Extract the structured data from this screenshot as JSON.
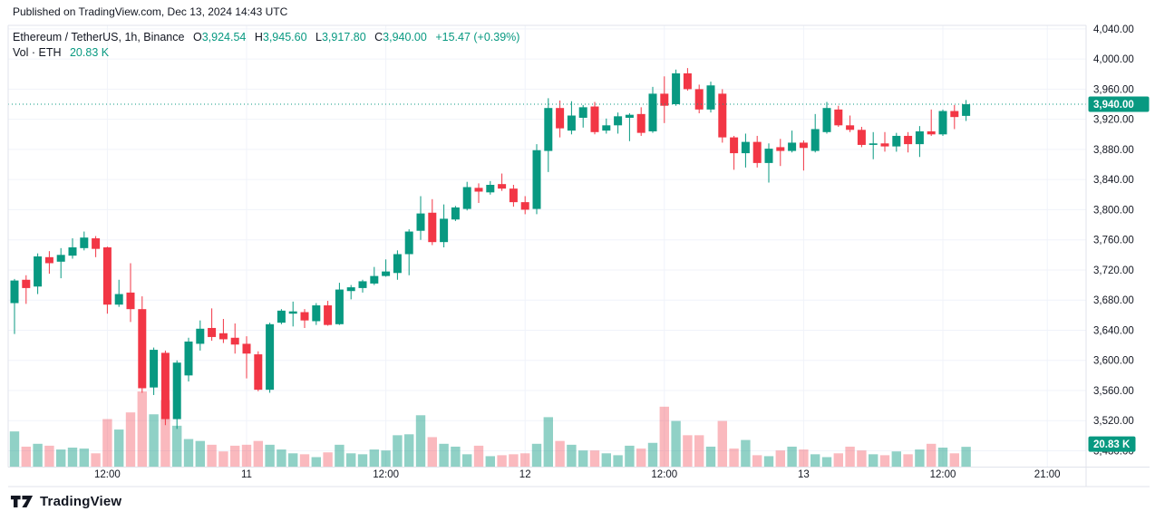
{
  "published_bar": {
    "text": "Published on TradingView.com, Dec 13, 2024 14:43 UTC"
  },
  "legend": {
    "title": "Ethereum / TetherUS, 1h, Binance",
    "o_label": "O",
    "o_value": "3,924.54",
    "h_label": "H",
    "h_value": "3,945.60",
    "l_label": "L",
    "l_value": "3,917.80",
    "c_label": "C",
    "c_value": "3,940.00",
    "change": "+15.47 (+0.39%)",
    "vol_label": "Vol · ETH",
    "vol_value": "20.83 K"
  },
  "footer": {
    "logo_text": "TradingView"
  },
  "colors": {
    "up": "#089981",
    "down": "#F23645",
    "vol_up": "rgba(8,153,129,0.45)",
    "vol_down": "rgba(242,54,69,0.35)",
    "text": "#131722",
    "grid": "#f0f3fa",
    "border": "#e0e3eb",
    "badge_bg": "#089981",
    "badge_text": "#ffffff",
    "dotted_line": "#089981"
  },
  "price_axis": {
    "labels": [
      {
        "value": 4040,
        "label": "4,040.00"
      },
      {
        "value": 4000,
        "label": "4,000.00"
      },
      {
        "value": 3960,
        "label": "3,960.00"
      },
      {
        "value": 3920,
        "label": "3,920.00"
      },
      {
        "value": 3880,
        "label": "3,880.00"
      },
      {
        "value": 3840,
        "label": "3,840.00"
      },
      {
        "value": 3800,
        "label": "3,800.00"
      },
      {
        "value": 3760,
        "label": "3,760.00"
      },
      {
        "value": 3720,
        "label": "3,720.00"
      },
      {
        "value": 3680,
        "label": "3,680.00"
      },
      {
        "value": 3640,
        "label": "3,640.00"
      },
      {
        "value": 3600,
        "label": "3,600.00"
      },
      {
        "value": 3560,
        "label": "3,560.00"
      },
      {
        "value": 3520,
        "label": "3,520.00"
      },
      {
        "value": 3480,
        "label": "3,480.00"
      }
    ],
    "current": {
      "value": 3940,
      "label": "3,940.00"
    },
    "volume_badge": {
      "value_k": 20.83,
      "label": "20.83 K"
    }
  },
  "time_axis": {
    "ticks": [
      {
        "label": "12:00",
        "index": 8
      },
      {
        "label": "11",
        "index": 20
      },
      {
        "label": "12:00",
        "index": 32
      },
      {
        "label": "12",
        "index": 44
      },
      {
        "label": "12:00",
        "index": 56
      },
      {
        "label": "13",
        "index": 68
      },
      {
        "label": "12:00",
        "index": 80
      },
      {
        "label": "21:00",
        "index": 89
      }
    ]
  },
  "chart_data": {
    "type": "candlestick",
    "title": "Ethereum / TetherUS, 1h, Binance",
    "symbol": "Ethereum / TetherUS",
    "interval": "1h",
    "exchange": "Binance",
    "volume_series": "Vol · ETH",
    "start_time": "Dec 10, 2024 04:00 UTC",
    "step_hours": 1,
    "price_range": [
      3480,
      4040
    ],
    "grid_step": 40,
    "last_candle": {
      "open": 3924.54,
      "high": 3945.6,
      "low": 3917.8,
      "close": 3940.0,
      "change_text": "+15.47 (+0.39%)",
      "volume_k": 20.83
    },
    "candles_format": [
      "open",
      "high",
      "low",
      "close",
      "volume_k"
    ],
    "candles": [
      [
        3676,
        3708,
        3635,
        3706,
        37
      ],
      [
        3707,
        3713,
        3675,
        3696,
        21
      ],
      [
        3698,
        3742,
        3688,
        3738,
        24
      ],
      [
        3737,
        3745,
        3715,
        3729,
        22
      ],
      [
        3731,
        3749,
        3709,
        3740,
        18
      ],
      [
        3739,
        3762,
        3735,
        3750,
        20
      ],
      [
        3749,
        3771,
        3746,
        3763,
        19
      ],
      [
        3762,
        3765,
        3737,
        3748,
        14
      ],
      [
        3750,
        3751,
        3662,
        3674,
        50
      ],
      [
        3674,
        3707,
        3671,
        3688,
        39
      ],
      [
        3690,
        3729,
        3651,
        3668,
        57
      ],
      [
        3668,
        3685,
        3557,
        3563,
        79
      ],
      [
        3564,
        3617,
        3554,
        3614,
        55
      ],
      [
        3610,
        3613,
        3514,
        3522,
        70
      ],
      [
        3522,
        3600,
        3509,
        3597,
        43
      ],
      [
        3580,
        3630,
        3572,
        3625,
        29
      ],
      [
        3622,
        3653,
        3613,
        3642,
        27
      ],
      [
        3643,
        3669,
        3626,
        3631,
        23
      ],
      [
        3636,
        3655,
        3623,
        3628,
        16
      ],
      [
        3630,
        3649,
        3609,
        3621,
        22
      ],
      [
        3622,
        3632,
        3576,
        3609,
        23
      ],
      [
        3608,
        3612,
        3559,
        3561,
        27
      ],
      [
        3561,
        3650,
        3557,
        3648,
        23
      ],
      [
        3650,
        3668,
        3648,
        3666,
        18
      ],
      [
        3662,
        3678,
        3645,
        3665,
        14
      ],
      [
        3664,
        3668,
        3643,
        3653,
        13
      ],
      [
        3652,
        3676,
        3647,
        3673,
        10
      ],
      [
        3673,
        3679,
        3646,
        3647,
        15
      ],
      [
        3648,
        3703,
        3647,
        3694,
        23
      ],
      [
        3692,
        3700,
        3681,
        3697,
        14
      ],
      [
        3696,
        3707,
        3690,
        3705,
        13
      ],
      [
        3702,
        3724,
        3700,
        3712,
        18
      ],
      [
        3712,
        3734,
        3711,
        3718,
        17
      ],
      [
        3716,
        3746,
        3707,
        3741,
        33
      ],
      [
        3741,
        3774,
        3713,
        3771,
        34
      ],
      [
        3772,
        3818,
        3760,
        3795,
        54
      ],
      [
        3796,
        3814,
        3753,
        3757,
        31
      ],
      [
        3757,
        3807,
        3750,
        3788,
        24
      ],
      [
        3787,
        3805,
        3785,
        3803,
        21
      ],
      [
        3801,
        3837,
        3799,
        3830,
        13
      ],
      [
        3829,
        3835,
        3809,
        3824,
        22
      ],
      [
        3823,
        3838,
        3820,
        3833,
        11
      ],
      [
        3834,
        3848,
        3825,
        3828,
        12
      ],
      [
        3828,
        3833,
        3804,
        3810,
        13
      ],
      [
        3810,
        3818,
        3794,
        3800,
        14
      ],
      [
        3801,
        3887,
        3794,
        3879,
        24
      ],
      [
        3878,
        3948,
        3850,
        3935,
        52
      ],
      [
        3935,
        3945,
        3896,
        3908,
        27
      ],
      [
        3905,
        3944,
        3900,
        3925,
        23
      ],
      [
        3922,
        3939,
        3909,
        3936,
        17
      ],
      [
        3937,
        3943,
        3900,
        3903,
        17
      ],
      [
        3905,
        3921,
        3901,
        3912,
        14
      ],
      [
        3912,
        3929,
        3901,
        3924,
        12
      ],
      [
        3922,
        3928,
        3891,
        3926,
        22
      ],
      [
        3927,
        3936,
        3898,
        3902,
        19
      ],
      [
        3904,
        3963,
        3902,
        3954,
        25
      ],
      [
        3954,
        3977,
        3915,
        3938,
        63
      ],
      [
        3940,
        3986,
        3938,
        3981,
        48
      ],
      [
        3981,
        3988,
        3958,
        3960,
        33
      ],
      [
        3960,
        3966,
        3928,
        3933,
        33
      ],
      [
        3933,
        3970,
        3929,
        3965,
        21
      ],
      [
        3954,
        3960,
        3889,
        3896,
        48
      ],
      [
        3896,
        3898,
        3853,
        3875,
        19
      ],
      [
        3875,
        3901,
        3856,
        3890,
        28
      ],
      [
        3890,
        3898,
        3856,
        3862,
        12
      ],
      [
        3862,
        3888,
        3836,
        3881,
        11
      ],
      [
        3883,
        3894,
        3858,
        3878,
        17
      ],
      [
        3878,
        3905,
        3876,
        3889,
        21
      ],
      [
        3889,
        3892,
        3852,
        3882,
        18
      ],
      [
        3878,
        3927,
        3876,
        3907,
        13
      ],
      [
        3903,
        3943,
        3901,
        3935,
        10
      ],
      [
        3933,
        3938,
        3910,
        3912,
        14
      ],
      [
        3912,
        3925,
        3903,
        3906,
        21
      ],
      [
        3906,
        3910,
        3883,
        3886,
        17
      ],
      [
        3886,
        3903,
        3867,
        3888,
        13
      ],
      [
        3888,
        3903,
        3877,
        3884,
        12
      ],
      [
        3884,
        3902,
        3877,
        3898,
        16
      ],
      [
        3898,
        3903,
        3876,
        3887,
        13
      ],
      [
        3887,
        3911,
        3870,
        3904,
        18
      ],
      [
        3904,
        3933,
        3898,
        3900,
        24
      ],
      [
        3900,
        3933,
        3898,
        3931,
        20
      ],
      [
        3931,
        3939,
        3907,
        3923,
        14
      ],
      [
        3924.54,
        3945.6,
        3917.8,
        3940,
        20.83
      ]
    ]
  }
}
